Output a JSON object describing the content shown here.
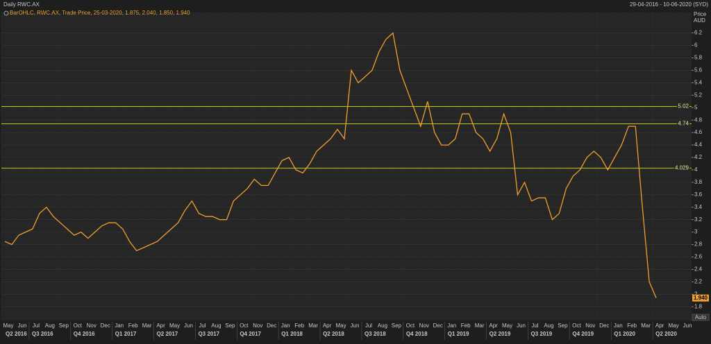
{
  "chart_data": {
    "type": "line",
    "title": "Daily RWC.AX",
    "date_range": "29-04-2016 - 10-06-2020 (SYD)",
    "legend": "BarOHLC, RWC.AX, Trade Price, 25-03-2020, 1.875, 2.040, 1.850, 1.940",
    "y_label": "Price",
    "y_unit": "AUD",
    "scale_mode": "Auto",
    "color": "#f0a030",
    "values": [
      2.85,
      2.8,
      2.95,
      3.0,
      3.05,
      3.3,
      3.4,
      3.25,
      3.15,
      3.05,
      2.95,
      3.0,
      2.9,
      3.0,
      3.1,
      3.15,
      3.15,
      3.05,
      2.85,
      2.7,
      2.75,
      2.8,
      2.85,
      2.95,
      3.05,
      3.15,
      3.35,
      3.5,
      3.3,
      3.25,
      3.25,
      3.2,
      3.2,
      3.5,
      3.6,
      3.7,
      3.85,
      3.75,
      3.75,
      3.95,
      4.15,
      4.2,
      4.0,
      3.95,
      4.1,
      4.3,
      4.4,
      4.5,
      4.65,
      4.5,
      5.6,
      5.4,
      5.5,
      5.6,
      5.9,
      6.1,
      6.2,
      5.6,
      5.3,
      5.0,
      4.7,
      5.1,
      4.6,
      4.4,
      4.4,
      4.5,
      4.9,
      4.9,
      4.6,
      4.5,
      4.3,
      4.5,
      4.9,
      4.6,
      3.6,
      3.8,
      3.5,
      3.55,
      3.55,
      3.2,
      3.3,
      3.7,
      3.9,
      4.0,
      4.2,
      4.3,
      4.2,
      4.0,
      4.2,
      4.4,
      4.7,
      4.7,
      3.4,
      2.2,
      1.94
    ],
    "last_price": {
      "value": 1.94,
      "label": "1.940"
    },
    "hlines": [
      5.02,
      4.74,
      4.029
    ],
    "hline_color": "#c8c800",
    "ylim": [
      1.58,
      6.53
    ],
    "yticks": [
      1.8,
      2,
      2.2,
      2.4,
      2.6,
      2.8,
      3,
      3.2,
      3.4,
      3.6,
      3.8,
      4,
      4.2,
      4.4,
      4.6,
      4.8,
      5,
      5.2,
      5.4,
      5.6,
      5.8,
      6,
      6.2
    ],
    "grid": true,
    "month_labels": [
      "May",
      "Jun",
      "Jul",
      "Aug",
      "Sep",
      "Oct",
      "Nov",
      "Dec",
      "Jan",
      "Feb",
      "Mar",
      "Apr",
      "May",
      "Jun",
      "Jul",
      "Aug",
      "Sep",
      "Oct",
      "Nov",
      "Dec",
      "Jan",
      "Feb",
      "Mar",
      "Apr",
      "May",
      "Jun",
      "Jul",
      "Aug",
      "Sep",
      "Oct",
      "Nov",
      "Dec",
      "Jan",
      "Feb",
      "Mar",
      "Apr",
      "May",
      "Jun",
      "Jul",
      "Aug",
      "Sep",
      "Oct",
      "Nov",
      "Dec",
      "Jan",
      "Feb",
      "Mar",
      "Apr",
      "May",
      "Jun"
    ],
    "quarter_labels": [
      "Q2 2016",
      "Q3 2016",
      "Q4 2016",
      "Q1 2017",
      "Q2 2017",
      "Q3 2017",
      "Q4 2017",
      "Q1 2018",
      "Q2 2018",
      "Q3 2018",
      "Q4 2018",
      "Q1 2019",
      "Q2 2019",
      "Q3 2019",
      "Q4 2019",
      "Q1 2020",
      "Q2 2020"
    ]
  }
}
